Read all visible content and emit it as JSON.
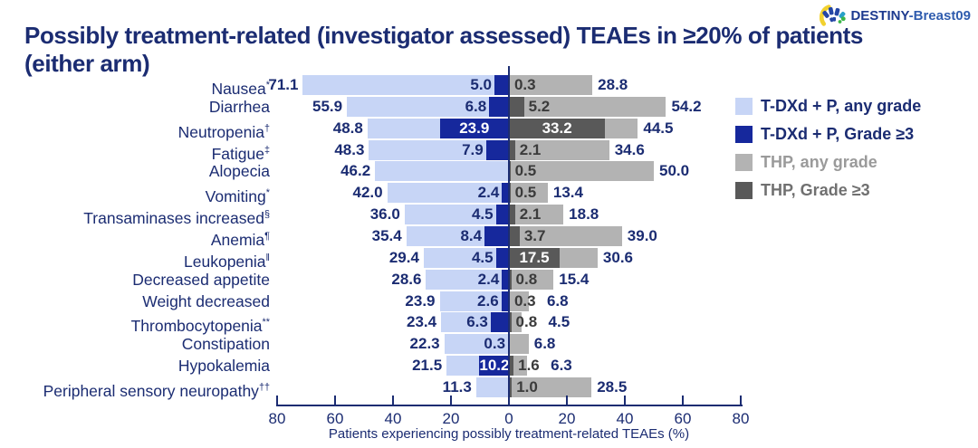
{
  "header": {
    "logo": {
      "brand_bold": "DESTINY",
      "brand_rest": "-Breast09"
    },
    "title_line1": "Possibly treatment-related (investigator assessed) TEAEs in ≥20% of patients",
    "title_line2": "(either arm)"
  },
  "colors": {
    "navy_text": "#1b2c72",
    "tdxd_any_grade": "#c7d5f6",
    "tdxd_grade3": "#16289c",
    "thp_any_grade": "#b3b3b3",
    "thp_grade3": "#595959",
    "in_gray_bar_label": "#3b3b3b"
  },
  "chart_data": {
    "type": "bar",
    "orientation": "diverging-horizontal",
    "title": "Possibly treatment-related (investigator assessed) TEAEs in ≥20% of patients (either arm)",
    "xlabel": "Patients experiencing possibly treatment-related TEAEs (%)",
    "x_ticks": [
      80,
      60,
      40,
      20,
      0,
      20,
      40,
      60,
      80
    ],
    "xlim_each_side": 80,
    "grid": false,
    "legend_position": "right",
    "legend": [
      {
        "label": "T-DXd + P, any grade",
        "color": "#c7d5f6",
        "text_color": "#1b2c72"
      },
      {
        "label": "T-DXd + P, Grade ≥3",
        "color": "#16289c",
        "text_color": "#1b2c72"
      },
      {
        "label": "THP, any grade",
        "color": "#b3b3b3",
        "text_color": "#9a9a9a"
      },
      {
        "label": "THP, Grade ≥3",
        "color": "#595959",
        "text_color": "#707070"
      }
    ],
    "rows": [
      {
        "label": "Nausea",
        "sup": "*",
        "tdxd_any": 71.1,
        "tdxd_grade3": 5.0,
        "thp_grade3": 0.3,
        "thp_any": 28.8
      },
      {
        "label": "Diarrhea",
        "sup": "",
        "tdxd_any": 55.9,
        "tdxd_grade3": 6.8,
        "thp_grade3": 5.2,
        "thp_any": 54.2
      },
      {
        "label": "Neutropenia",
        "sup": "†",
        "tdxd_any": 48.8,
        "tdxd_grade3": 23.9,
        "thp_grade3": 33.2,
        "thp_any": 44.5
      },
      {
        "label": "Fatigue",
        "sup": "‡",
        "tdxd_any": 48.3,
        "tdxd_grade3": 7.9,
        "thp_grade3": 2.1,
        "thp_any": 34.6
      },
      {
        "label": "Alopecia",
        "sup": "",
        "tdxd_any": 46.2,
        "tdxd_grade3": null,
        "thp_grade3": 0.5,
        "thp_any": 50.0
      },
      {
        "label": "Vomiting",
        "sup": "*",
        "tdxd_any": 42.0,
        "tdxd_grade3": 2.4,
        "thp_grade3": 0.5,
        "thp_any": 13.4
      },
      {
        "label": "Transaminases increased",
        "sup": "§",
        "tdxd_any": 36.0,
        "tdxd_grade3": 4.5,
        "thp_grade3": 2.1,
        "thp_any": 18.8
      },
      {
        "label": "Anemia",
        "sup": "¶",
        "tdxd_any": 35.4,
        "tdxd_grade3": 8.4,
        "thp_grade3": 3.7,
        "thp_any": 39.0
      },
      {
        "label": "Leukopenia",
        "sup": "‖",
        "tdxd_any": 29.4,
        "tdxd_grade3": 4.5,
        "thp_grade3": 17.5,
        "thp_any": 30.6
      },
      {
        "label": "Decreased appetite",
        "sup": "",
        "tdxd_any": 28.6,
        "tdxd_grade3": 2.4,
        "thp_grade3": 0.8,
        "thp_any": 15.4
      },
      {
        "label": "Weight decreased",
        "sup": "",
        "tdxd_any": 23.9,
        "tdxd_grade3": 2.6,
        "thp_grade3": 0.3,
        "thp_any": 6.8
      },
      {
        "label": "Thrombocytopenia",
        "sup": "**",
        "tdxd_any": 23.4,
        "tdxd_grade3": 6.3,
        "thp_grade3": 0.8,
        "thp_any": 4.5
      },
      {
        "label": "Constipation",
        "sup": "",
        "tdxd_any": 22.3,
        "tdxd_grade3": 0.3,
        "thp_grade3": null,
        "thp_any": 6.8
      },
      {
        "label": "Hypokalemia",
        "sup": "",
        "tdxd_any": 21.5,
        "tdxd_grade3": 10.2,
        "thp_grade3": 1.6,
        "thp_any": 6.3
      },
      {
        "label": "Peripheral sensory neuropathy",
        "sup": "††",
        "tdxd_any": 11.3,
        "tdxd_grade3": null,
        "thp_grade3": 1.0,
        "thp_any": 28.5
      }
    ]
  }
}
